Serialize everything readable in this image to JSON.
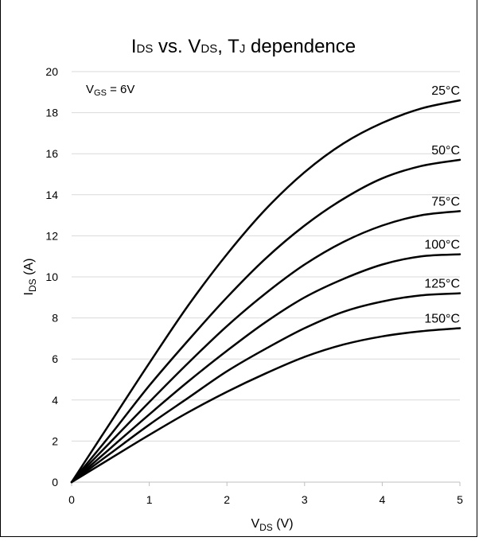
{
  "chart_data": {
    "type": "line",
    "title": {
      "main": "I",
      "sub1": "DS",
      "mid1": " vs. V",
      "sub2": "DS",
      "mid2": ", T",
      "sub3": "J",
      "end": " dependence"
    },
    "xlabel": {
      "main": "V",
      "sub": "DS",
      "unit": " (V)"
    },
    "ylabel": {
      "main": "I",
      "sub": "DS",
      "unit": " (A)"
    },
    "annotation": {
      "main": "V",
      "sub": "GS",
      "rest": " = 6V"
    },
    "xlim": [
      0,
      5
    ],
    "ylim": [
      0,
      20
    ],
    "xticks": [
      "0",
      "1",
      "2",
      "3",
      "4",
      "5"
    ],
    "yticks": [
      "0",
      "2",
      "4",
      "6",
      "8",
      "10",
      "12",
      "14",
      "16",
      "18",
      "20"
    ],
    "grid": "horizontal",
    "x": [
      0,
      0.5,
      1,
      1.5,
      2,
      2.5,
      3,
      3.5,
      4,
      4.5,
      5
    ],
    "series": [
      {
        "name": "25°C",
        "values": [
          0,
          2.9,
          5.8,
          8.6,
          11.1,
          13.3,
          15.1,
          16.5,
          17.5,
          18.2,
          18.6
        ]
      },
      {
        "name": "50°C",
        "values": [
          0,
          2.3,
          4.7,
          6.9,
          9.0,
          10.9,
          12.5,
          13.8,
          14.8,
          15.4,
          15.7
        ]
      },
      {
        "name": "75°C",
        "values": [
          0,
          1.95,
          3.9,
          5.8,
          7.6,
          9.2,
          10.6,
          11.7,
          12.5,
          13.0,
          13.2
        ]
      },
      {
        "name": "100°C",
        "values": [
          0,
          1.65,
          3.3,
          4.9,
          6.4,
          7.8,
          9.0,
          9.9,
          10.6,
          11.0,
          11.1
        ]
      },
      {
        "name": "125°C",
        "values": [
          0,
          1.4,
          2.8,
          4.1,
          5.4,
          6.5,
          7.5,
          8.3,
          8.8,
          9.1,
          9.2
        ]
      },
      {
        "name": "150°C",
        "values": [
          0,
          1.15,
          2.3,
          3.4,
          4.4,
          5.3,
          6.1,
          6.7,
          7.1,
          7.35,
          7.5
        ]
      }
    ],
    "line_color": "#000000",
    "grid_color": "#d9d9d9"
  }
}
